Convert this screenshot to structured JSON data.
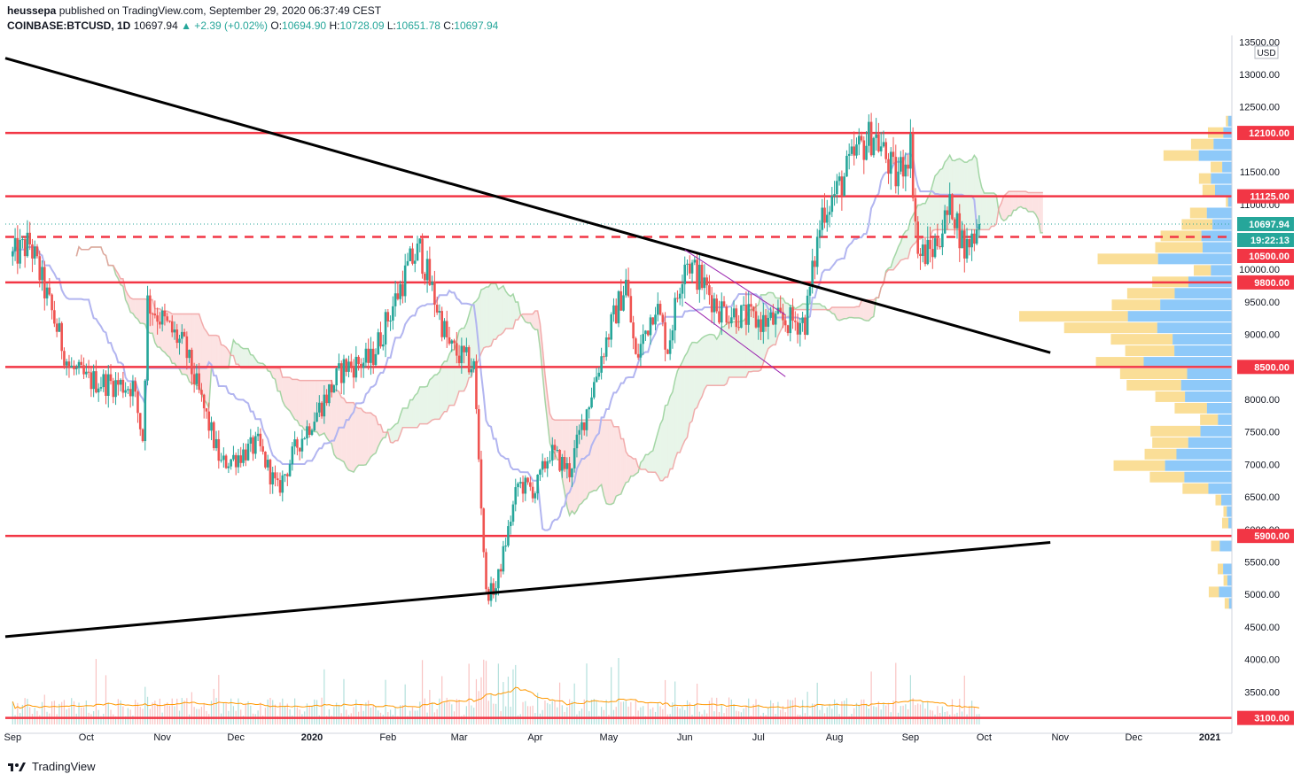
{
  "header": {
    "author": "heussepa",
    "published_text": "published on TradingView.com, September 29, 2020 06:37:49 CEST",
    "symbol": "COINBASE:BTCUSD, 1D",
    "last": "10697.94",
    "change": "▲ +2.39 (+0.02%)",
    "open_label": "O:",
    "open": "10694.90",
    "high_label": "H:",
    "high": "10728.09",
    "low_label": "L:",
    "low": "10651.78",
    "close_label": "C:",
    "close": "10697.94"
  },
  "footer": {
    "brand": "TradingView",
    "logo_icon": "tradingview-logo-icon"
  },
  "colors": {
    "up": "#26a69a",
    "down": "#ef5350",
    "level": "#f23645",
    "kijun": "#b2b5f0",
    "spanA": "#81c784",
    "spanB": "#ef9a9a",
    "vol_vap_up": "#f5c242",
    "vol_vap_down": "#42a5f5"
  },
  "chart_data": {
    "type": "candlestick",
    "currency": "USD",
    "y_ticks": [
      "13500.00",
      "13000.00",
      "12500.00",
      "11500.00",
      "11000.00",
      "10000.00",
      "9500.00",
      "9000.00",
      "8000.00",
      "7500.00",
      "7000.00",
      "6500.00",
      "6000.00",
      "5500.00",
      "5000.00",
      "4500.00",
      "4000.00",
      "3500.00"
    ],
    "x_ticks": [
      "Sep",
      "Oct",
      "Nov",
      "Dec",
      "2020",
      "Feb",
      "Mar",
      "Apr",
      "May",
      "Jun",
      "Jul",
      "Aug",
      "Sep",
      "Oct",
      "Nov",
      "Dec",
      "2021"
    ],
    "price_labels": [
      {
        "value": 12100,
        "text": "12100.00",
        "style": "solid"
      },
      {
        "value": 11125,
        "text": "11125.00",
        "style": "solid"
      },
      {
        "value": 10697.94,
        "text": "10697.94",
        "style": "last"
      },
      {
        "value": 10550,
        "text": "19:22:13",
        "style": "countdown"
      },
      {
        "value": 10500,
        "text": "10500.00",
        "style": "dashed"
      },
      {
        "value": 9800,
        "text": "9800.00",
        "style": "solid"
      },
      {
        "value": 8500,
        "text": "8500.00",
        "style": "solid"
      },
      {
        "value": 5900,
        "text": "5900.00",
        "style": "solid"
      },
      {
        "value": 3100,
        "text": "3100.00",
        "style": "solid"
      }
    ],
    "key_prices": [
      {
        "date": "2019-09-01",
        "price": 10200
      },
      {
        "date": "2019-09-08",
        "price": 10400
      },
      {
        "date": "2019-09-24",
        "price": 8500
      },
      {
        "date": "2019-10-01",
        "price": 8300
      },
      {
        "date": "2019-10-20",
        "price": 8200
      },
      {
        "date": "2019-10-24",
        "price": 7400
      },
      {
        "date": "2019-10-26",
        "price": 9500
      },
      {
        "date": "2019-11-10",
        "price": 8800
      },
      {
        "date": "2019-11-25",
        "price": 7000
      },
      {
        "date": "2019-12-10",
        "price": 7300
      },
      {
        "date": "2019-12-18",
        "price": 6600
      },
      {
        "date": "2019-12-26",
        "price": 7300
      },
      {
        "date": "2020-01-14",
        "price": 8500
      },
      {
        "date": "2020-01-25",
        "price": 8600
      },
      {
        "date": "2020-02-10",
        "price": 10100
      },
      {
        "date": "2020-02-14",
        "price": 10300
      },
      {
        "date": "2020-02-26",
        "price": 8800
      },
      {
        "date": "2020-03-07",
        "price": 8500
      },
      {
        "date": "2020-03-12",
        "price": 5000
      },
      {
        "date": "2020-03-16",
        "price": 5100
      },
      {
        "date": "2020-03-25",
        "price": 6700
      },
      {
        "date": "2020-04-01",
        "price": 6600
      },
      {
        "date": "2020-04-07",
        "price": 7200
      },
      {
        "date": "2020-04-15",
        "price": 6900
      },
      {
        "date": "2020-04-29",
        "price": 8800
      },
      {
        "date": "2020-05-08",
        "price": 9800
      },
      {
        "date": "2020-05-12",
        "price": 8600
      },
      {
        "date": "2020-05-20",
        "price": 9500
      },
      {
        "date": "2020-05-25",
        "price": 8800
      },
      {
        "date": "2020-06-01",
        "price": 10200
      },
      {
        "date": "2020-06-15",
        "price": 9400
      },
      {
        "date": "2020-07-01",
        "price": 9200
      },
      {
        "date": "2020-07-20",
        "price": 9200
      },
      {
        "date": "2020-07-27",
        "price": 10900
      },
      {
        "date": "2020-08-02",
        "price": 11200
      },
      {
        "date": "2020-08-10",
        "price": 11800
      },
      {
        "date": "2020-08-17",
        "price": 12100
      },
      {
        "date": "2020-08-26",
        "price": 11400
      },
      {
        "date": "2020-09-01",
        "price": 11900
      },
      {
        "date": "2020-09-04",
        "price": 10200
      },
      {
        "date": "2020-09-10",
        "price": 10300
      },
      {
        "date": "2020-09-18",
        "price": 11000
      },
      {
        "date": "2020-09-23",
        "price": 10300
      },
      {
        "date": "2020-09-29",
        "price": 10697.94
      }
    ],
    "trendlines": [
      {
        "name": "descending-resistance",
        "from": {
          "date": "2019-08-29",
          "price": 13250
        },
        "to": {
          "date": "2020-10-28",
          "price": 8720
        }
      },
      {
        "name": "ascending-support",
        "from": {
          "date": "2019-08-29",
          "price": 4350
        },
        "to": {
          "date": "2020-10-28",
          "price": 5800
        }
      }
    ],
    "x_range": [
      "2019-08-29",
      "2021-01-10"
    ],
    "y_range": [
      3000,
      13600
    ]
  }
}
